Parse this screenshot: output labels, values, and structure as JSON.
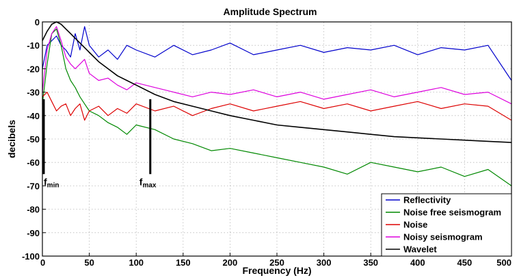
{
  "chart_data": {
    "type": "line",
    "title": "Amplitude Spectrum",
    "xlabel": "Frequency (Hz)",
    "ylabel": "decibels",
    "xlim": [
      0,
      500
    ],
    "ylim": [
      -100,
      0
    ],
    "x_ticks": [
      0,
      50,
      100,
      150,
      200,
      250,
      300,
      350,
      400,
      450,
      500
    ],
    "y_ticks": [
      0,
      -10,
      -20,
      -30,
      -40,
      -50,
      -60,
      -70,
      -80,
      -90,
      -100
    ],
    "grid": true,
    "legend_position": "bottom-right",
    "x": [
      0,
      5,
      10,
      15,
      20,
      25,
      30,
      35,
      40,
      45,
      50,
      60,
      70,
      80,
      90,
      100,
      120,
      140,
      160,
      180,
      200,
      225,
      250,
      275,
      300,
      325,
      350,
      375,
      400,
      425,
      450,
      475,
      500
    ],
    "series": [
      {
        "name": "Reflectivity",
        "color": "#0000cc",
        "values": [
          -20,
          -10,
          -8,
          -6,
          -10,
          -12,
          -15,
          -5,
          -12,
          -2,
          -10,
          -15,
          -12,
          -16,
          -10,
          -12,
          -15,
          -10,
          -14,
          -12,
          -9,
          -14,
          -12,
          -10,
          -13,
          -11,
          -12,
          -10,
          -14,
          -11,
          -12,
          -10,
          -25
        ]
      },
      {
        "name": "Noise free seismogram",
        "color": "#008800",
        "values": [
          -35,
          -18,
          -5,
          -3,
          -10,
          -20,
          -25,
          -28,
          -32,
          -35,
          -38,
          -40,
          -43,
          -45,
          -48,
          -44,
          -46,
          -50,
          -52,
          -55,
          -54,
          -56,
          -58,
          -60,
          -62,
          -65,
          -60,
          -62,
          -64,
          -62,
          -66,
          -63,
          -70
        ]
      },
      {
        "name": "Noise",
        "color": "#dd0000",
        "values": [
          -32,
          -30,
          -34,
          -38,
          -36,
          -35,
          -40,
          -37,
          -35,
          -42,
          -38,
          -36,
          -40,
          -37,
          -39,
          -35,
          -38,
          -36,
          -40,
          -37,
          -35,
          -38,
          -36,
          -34,
          -37,
          -35,
          -38,
          -36,
          -34,
          -37,
          -35,
          -36,
          -42
        ]
      },
      {
        "name": "Noisy seismogram",
        "color": "#dd00dd",
        "values": [
          -30,
          -12,
          -5,
          -2,
          -8,
          -15,
          -18,
          -20,
          -18,
          -16,
          -22,
          -25,
          -24,
          -27,
          -29,
          -26,
          -28,
          -30,
          -32,
          -30,
          -31,
          -29,
          -32,
          -30,
          -33,
          -31,
          -29,
          -32,
          -30,
          -28,
          -31,
          -30,
          -35
        ]
      },
      {
        "name": "Wavelet",
        "color": "#000000",
        "values": [
          -8,
          -4,
          -1,
          0,
          -1,
          -3,
          -5,
          -7,
          -9,
          -11,
          -13,
          -17,
          -20,
          -23,
          -25,
          -27,
          -31,
          -34,
          -36,
          -38,
          -40,
          -42,
          -44,
          -45,
          -46,
          -47,
          -48,
          -49,
          -49.5,
          -50,
          -50.5,
          -51,
          -51.5
        ]
      }
    ],
    "annotations": [
      {
        "label": "f",
        "subscript": "min",
        "x": 0,
        "y_from": -33,
        "y_to": -65
      },
      {
        "label": "f",
        "subscript": "max",
        "x": 115,
        "y_from": -33,
        "y_to": -65
      }
    ]
  }
}
